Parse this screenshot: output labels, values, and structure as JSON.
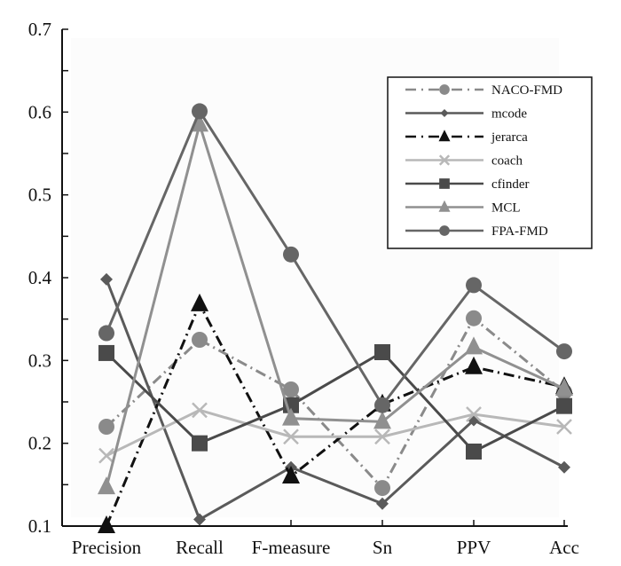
{
  "chart_data": {
    "type": "line",
    "title": "",
    "xlabel": "",
    "ylabel": "",
    "categories": [
      "Precision",
      "Recall",
      "F-measure",
      "Sn",
      "PPV",
      "Acc"
    ],
    "ylim": [
      0.1,
      0.7
    ],
    "yticks": [
      "0.1",
      "0.2",
      "0.3",
      "0.4",
      "0.5",
      "0.6",
      "0.7"
    ],
    "grid": false,
    "legend_position": "top-right",
    "series": [
      {
        "name": "NACO-FMD",
        "color": "#8a8a8a",
        "dash": "dashdot",
        "marker": "circle",
        "values": [
          0.22,
          0.325,
          0.265,
          0.146,
          0.351,
          0.262
        ]
      },
      {
        "name": "mcode",
        "color": "#5a5a5a",
        "dash": "solid",
        "marker": "diamond",
        "values": [
          0.398,
          0.108,
          0.171,
          0.127,
          0.228,
          0.171
        ]
      },
      {
        "name": "jerarca",
        "color": "#111111",
        "dash": "dashdot",
        "marker": "triangle",
        "values": [
          0.1,
          0.368,
          0.16,
          0.247,
          0.292,
          0.268
        ]
      },
      {
        "name": "coach",
        "color": "#b8b8b8",
        "dash": "solid",
        "marker": "x",
        "values": [
          0.185,
          0.24,
          0.208,
          0.208,
          0.235,
          0.22
        ]
      },
      {
        "name": "cfinder",
        "color": "#4a4a4a",
        "dash": "solid",
        "marker": "square",
        "values": [
          0.309,
          0.2,
          0.246,
          0.31,
          0.19,
          0.245
        ]
      },
      {
        "name": "MCL",
        "color": "#909090",
        "dash": "solid",
        "marker": "triangle",
        "values": [
          0.147,
          0.585,
          0.23,
          0.226,
          0.316,
          0.266
        ]
      },
      {
        "name": "FPA-FMD",
        "color": "#666666",
        "dash": "solid",
        "marker": "circle",
        "values": [
          0.333,
          0.601,
          0.428,
          0.246,
          0.391,
          0.311
        ]
      }
    ]
  }
}
